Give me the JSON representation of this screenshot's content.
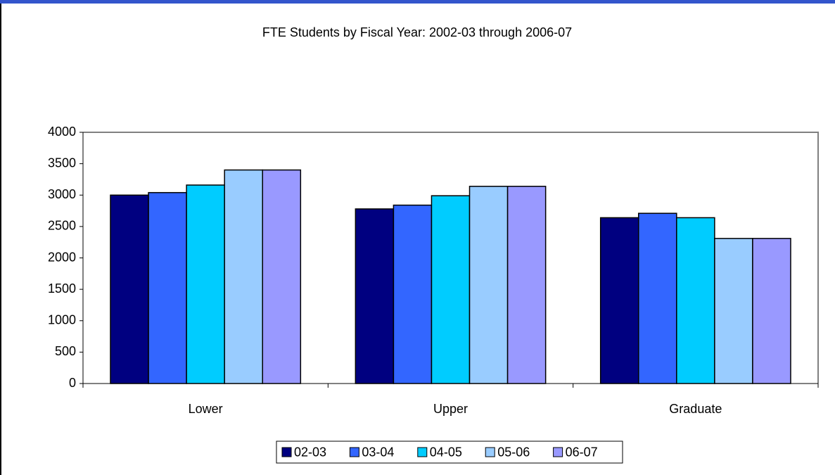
{
  "chart_data": {
    "type": "bar",
    "title": "FTE Students by Fiscal Year:  2002-03 through 2006-07",
    "categories": [
      "Lower",
      "Upper",
      "Graduate"
    ],
    "series": [
      {
        "name": "02-03",
        "color": "#000080",
        "values": [
          3000,
          2780,
          2640
        ]
      },
      {
        "name": "03-04",
        "color": "#3366ff",
        "values": [
          3040,
          2840,
          2710
        ]
      },
      {
        "name": "04-05",
        "color": "#00ccff",
        "values": [
          3160,
          2990,
          2640
        ]
      },
      {
        "name": "05-06",
        "color": "#99ccff",
        "values": [
          3400,
          3140,
          2310
        ]
      },
      {
        "name": "06-07",
        "color": "#9999ff",
        "values": [
          3400,
          3140,
          2310
        ]
      }
    ],
    "ylim": [
      0,
      4000
    ],
    "yticks": [
      0,
      500,
      1000,
      1500,
      2000,
      2500,
      3000,
      3500,
      4000
    ],
    "legend": "bottom"
  }
}
